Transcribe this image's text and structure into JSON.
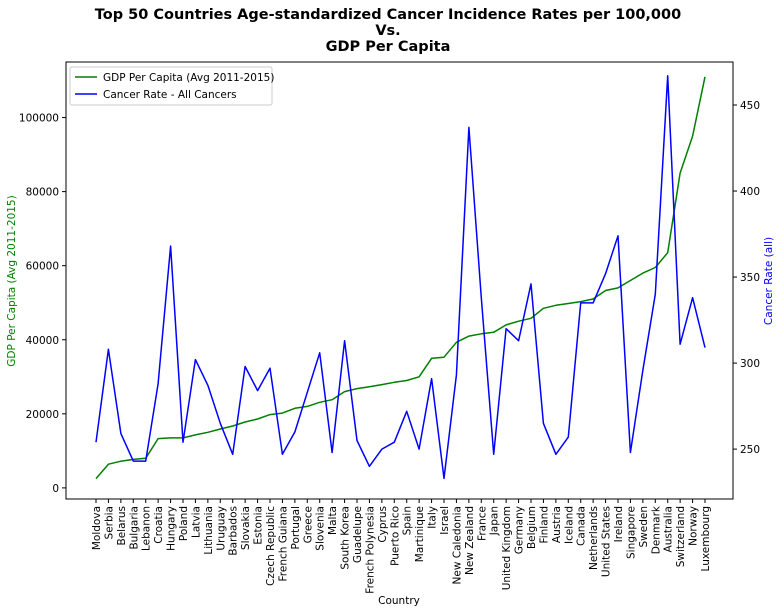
{
  "chart_data": {
    "type": "line",
    "title": [
      "Top 50 Countries Age-standardized Cancer Incidence Rates per 100,000",
      "Vs.",
      "GDP Per Capita"
    ],
    "xlabel": "Country",
    "ylabel_left": "GDP Per Capita (Avg 2011-2015)",
    "ylabel_right": "Cancer Rate (all)",
    "ylim_left": [
      -3000,
      115000
    ],
    "ylim_right": [
      221,
      475
    ],
    "yticks_left": [
      0,
      20000,
      40000,
      60000,
      80000,
      100000
    ],
    "yticks_right": [
      250,
      300,
      350,
      400,
      450
    ],
    "legend_position": "top-left",
    "colors": {
      "gdp": "#008000",
      "cancer": "#0000ff"
    },
    "categories": [
      "Moldova",
      "Serbia",
      "Belarus",
      "Bulgaria",
      "Lebanon",
      "Croatia",
      "Hungary",
      "Poland",
      "Latvia",
      "Lithuania",
      "Uruguay",
      "Barbados",
      "Slovakia",
      "Estonia",
      "Czech Republic",
      "French Guiana",
      "Portugal",
      "Greece",
      "Slovenia",
      "Malta",
      "South Korea",
      "Guadelupe",
      "French Polynesia",
      "Cyprus",
      "Puerto Rico",
      "Spain",
      "Martinique",
      "Italy",
      "Israel",
      "New Caledonia",
      "New Zealand",
      "France",
      "Japan",
      "United Kingdom",
      "Germany",
      "Belgium",
      "Finland",
      "Austria",
      "Iceland",
      "Canada",
      "Netherlands",
      "United States",
      "Ireland",
      "Singapore",
      "Sweden",
      "Denmark",
      "Australia",
      "Switzerland",
      "Norway",
      "Luxembourg"
    ],
    "series": [
      {
        "name": "GDP Per Capita (Avg 2011-2015)",
        "axis": "left",
        "values": [
          2500,
          6400,
          7200,
          7700,
          8000,
          13300,
          13500,
          13500,
          14300,
          15000,
          15900,
          16700,
          17800,
          18600,
          19800,
          20200,
          21500,
          22000,
          23100,
          23800,
          26000,
          26800,
          27300,
          27900,
          28500,
          29000,
          30000,
          35000,
          35300,
          39300,
          41000,
          41600,
          42000,
          44000,
          45000,
          45800,
          48500,
          49300,
          49800,
          50300,
          51000,
          53300,
          54000,
          56000,
          58000,
          59500,
          63500,
          85000,
          95000,
          111000
        ]
      },
      {
        "name": "Cancer Rate - All Cancers",
        "axis": "right",
        "values": [
          254,
          308,
          259,
          243,
          243,
          288,
          368,
          254,
          302,
          287,
          265,
          247,
          298,
          284,
          297,
          247,
          260,
          283,
          306,
          248,
          313,
          255,
          240,
          250,
          254,
          272,
          250,
          291,
          233,
          293,
          437,
          338,
          247,
          320,
          313,
          346,
          265,
          247,
          257,
          335,
          335,
          352,
          374,
          248,
          296,
          340,
          467,
          311,
          338,
          309
        ]
      }
    ]
  }
}
